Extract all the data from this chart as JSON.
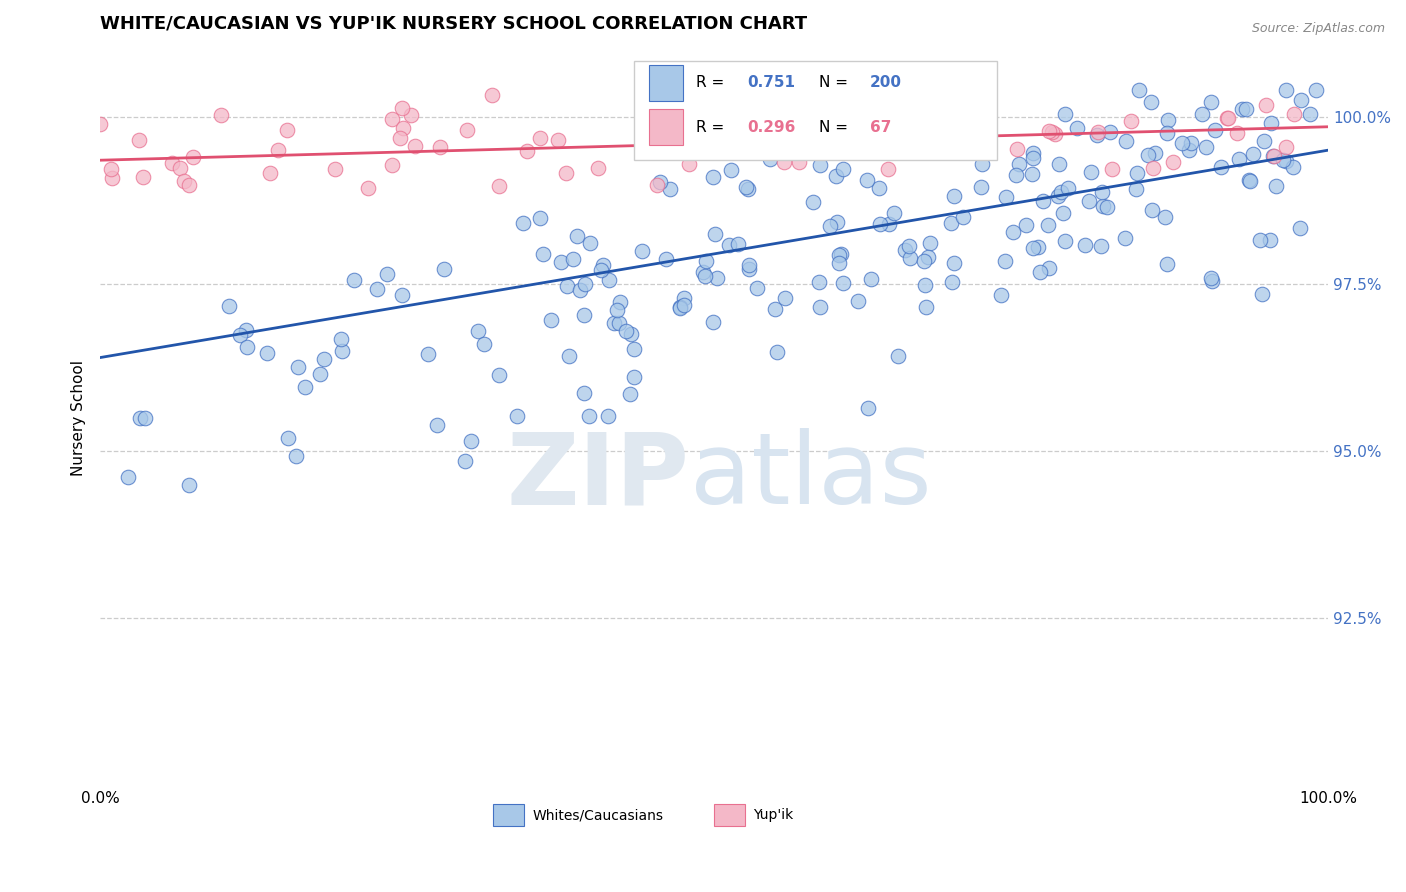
{
  "title": "WHITE/CAUCASIAN VS YUP'IK NURSERY SCHOOL CORRELATION CHART",
  "source_text": "Source: ZipAtlas.com",
  "ylabel": "Nursery School",
  "legend_label1": "Whites/Caucasians",
  "legend_label2": "Yup'ik",
  "r_blue": 0.751,
  "n_blue": 200,
  "r_pink": 0.296,
  "n_pink": 67,
  "blue_color": "#a8c8e8",
  "blue_edge_color": "#4472c4",
  "blue_line_color": "#2255aa",
  "pink_color": "#f4b8c8",
  "pink_edge_color": "#e87090",
  "pink_line_color": "#e05070",
  "x_min": 0.0,
  "x_max": 1.0,
  "y_min": 90.0,
  "y_max": 101.0,
  "ytick_vals": [
    92.5,
    95.0,
    97.5,
    100.0
  ],
  "ytick_labels": [
    "92.5%",
    "95.0%",
    "97.5%",
    "100.0%"
  ],
  "xtick_vals": [
    0.0,
    1.0
  ],
  "xtick_labels": [
    "0.0%",
    "100.0%"
  ],
  "grid_color": "#cccccc",
  "background_color": "#ffffff",
  "title_fontsize": 13,
  "axis_label_fontsize": 11,
  "tick_color": "#4472c4",
  "tick_fontsize": 11,
  "blue_line_y0": 96.4,
  "blue_line_y1": 99.5,
  "pink_line_y0": 99.35,
  "pink_line_y1": 99.85
}
